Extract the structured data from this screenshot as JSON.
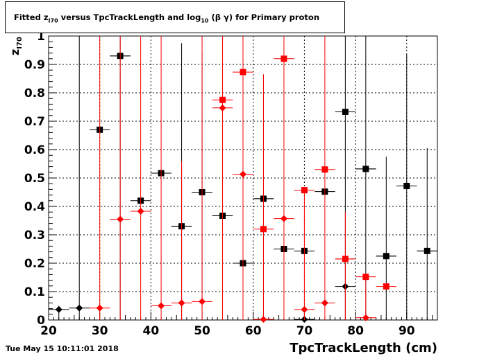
{
  "title": {
    "prefix": "Fitted  z",
    "sub1": "I70",
    "mid": "  versus TpcTrackLength and log",
    "sub2": "10",
    "suffix": " (β γ) for Primary proton"
  },
  "timestamp": "Tue May 15 10:11:01 2018",
  "chart_data": {
    "type": "scatter",
    "title": "Fitted z_I70 versus TpcTrackLength and log10 (β γ) for Primary proton",
    "xlabel": "TpcTrackLength (cm)",
    "ylabel": "z_I70",
    "xlim": [
      20,
      96
    ],
    "ylim": [
      0,
      1
    ],
    "xticks": [
      20,
      30,
      40,
      50,
      60,
      70,
      80,
      90
    ],
    "yticks": [
      0,
      0.1,
      0.2,
      0.3,
      0.4,
      0.5,
      0.6,
      0.7,
      0.8,
      0.9,
      1
    ],
    "ytick_labels": [
      "0",
      "0.1",
      "0.2",
      "0.3",
      "0.4",
      "0.5",
      "0.6",
      "0.7",
      "0.8",
      "0.9",
      "1"
    ],
    "grid": true,
    "x_error": 2,
    "series": [
      {
        "color": "#000000",
        "marker": "square",
        "points": [
          {
            "x": 30,
            "y": 0.67
          },
          {
            "x": 34,
            "y": 0.93
          },
          {
            "x": 38,
            "y": 0.42
          },
          {
            "x": 42,
            "y": 0.517
          },
          {
            "x": 46,
            "y": 0.33
          },
          {
            "x": 50,
            "y": 0.45
          },
          {
            "x": 54,
            "y": 0.367
          },
          {
            "x": 58,
            "y": 0.2
          },
          {
            "x": 62,
            "y": 0.427
          },
          {
            "x": 66,
            "y": 0.25
          },
          {
            "x": 70,
            "y": 0.243
          },
          {
            "x": 74,
            "y": 0.452
          },
          {
            "x": 78,
            "y": 0.733
          },
          {
            "x": 82,
            "y": 0.532
          },
          {
            "x": 86,
            "y": 0.225
          },
          {
            "x": 90,
            "y": 0.472
          },
          {
            "x": 94,
            "y": 0.243
          }
        ]
      },
      {
        "color": "#000000",
        "marker": "diamond",
        "points": [
          {
            "x": 22,
            "y": 0.037,
            "yhi": 0.05
          },
          {
            "x": 26,
            "y": 0.042,
            "yhi": 1
          },
          {
            "x": 34,
            "y": 0.93,
            "yhi": 1
          },
          {
            "x": 46,
            "y": 0.33,
            "yhi": 0.975
          },
          {
            "x": 50,
            "y": 0.45,
            "yhi": 0.94
          },
          {
            "x": 62,
            "y": 0.427,
            "yhi": 0.865
          },
          {
            "x": 70,
            "y": 0.002,
            "yhi": 0.02
          },
          {
            "x": 78,
            "y": 0.118,
            "yhi": 1
          },
          {
            "x": 82,
            "y": 0.532,
            "yhi": 1
          },
          {
            "x": 86,
            "y": 0.225,
            "yhi": 0.575
          },
          {
            "x": 90,
            "y": 0.472,
            "yhi": 0.935
          },
          {
            "x": 94,
            "y": 0.243,
            "yhi": 0.605
          }
        ]
      },
      {
        "color": "#ff0000",
        "marker": "square",
        "points": [
          {
            "x": 54,
            "y": 0.775
          },
          {
            "x": 58,
            "y": 0.873
          },
          {
            "x": 62,
            "y": 0.32
          },
          {
            "x": 66,
            "y": 0.92
          },
          {
            "x": 70,
            "y": 0.457
          },
          {
            "x": 74,
            "y": 0.53
          },
          {
            "x": 78,
            "y": 0.215
          },
          {
            "x": 82,
            "y": 0.152
          },
          {
            "x": 86,
            "y": 0.118
          }
        ]
      },
      {
        "color": "#ff0000",
        "marker": "diamond",
        "points": [
          {
            "x": 30,
            "y": 0.042,
            "yhi": 1
          },
          {
            "x": 34,
            "y": 0.355,
            "yhi": 1
          },
          {
            "x": 38,
            "y": 0.383,
            "yhi": 1
          },
          {
            "x": 42,
            "y": 0.05,
            "yhi": 1
          },
          {
            "x": 46,
            "y": 0.06,
            "yhi": 0.56
          },
          {
            "x": 50,
            "y": 0.065,
            "yhi": 1
          },
          {
            "x": 54,
            "y": 0.747,
            "yhi": 1
          },
          {
            "x": 58,
            "y": 0.513,
            "yhi": 1
          },
          {
            "x": 62,
            "y": 0.002,
            "yhi": 0.865
          },
          {
            "x": 66,
            "y": 0.357,
            "yhi": 1
          },
          {
            "x": 70,
            "y": 0.037,
            "yhi": 0.46
          },
          {
            "x": 74,
            "y": 0.06,
            "yhi": 1
          },
          {
            "x": 78,
            "y": 0.215,
            "yhi": 0.38
          },
          {
            "x": 82,
            "y": 0.008,
            "yhi": 0.165
          }
        ]
      }
    ]
  }
}
